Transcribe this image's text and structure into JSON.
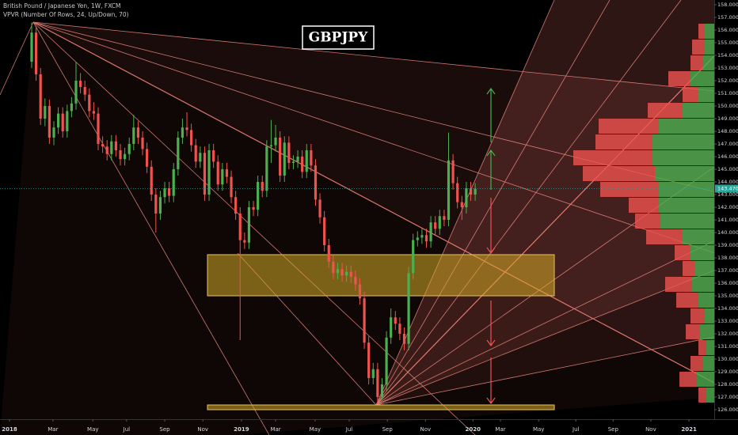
{
  "chart_data": {
    "type": "candlestick",
    "title": "GBPJPY",
    "symbol_info": "British Pound / Japanese Yen, 1W, FXCM",
    "indicator": "VPVR (Number Of Rows, 24, Up/Down, 70)",
    "up_color": "#4caf50",
    "down_color": "#ef5350",
    "xlim": [
      -2.14,
      158.9
    ],
    "ylim": [
      125.25,
      158.375
    ],
    "xticks": [
      {
        "value": 0,
        "label": "2018"
      },
      {
        "value": 9.8,
        "label": "Mar"
      },
      {
        "value": 18.8,
        "label": "May"
      },
      {
        "value": 26.4,
        "label": "Jul"
      },
      {
        "value": 35,
        "label": "Sep"
      },
      {
        "value": 43.6,
        "label": "Nov"
      },
      {
        "value": 52.3,
        "label": "2019"
      },
      {
        "value": 60,
        "label": "Mar"
      },
      {
        "value": 68.9,
        "label": "May"
      },
      {
        "value": 76.6,
        "label": "Jul"
      },
      {
        "value": 85.2,
        "label": "Sep"
      },
      {
        "value": 93.8,
        "label": "Nov"
      },
      {
        "value": 104.5,
        "label": "2020"
      },
      {
        "value": 110.7,
        "label": "Mar"
      },
      {
        "value": 119.3,
        "label": "May"
      },
      {
        "value": 127.7,
        "label": "Jul"
      },
      {
        "value": 136.1,
        "label": "Sep"
      },
      {
        "value": 144.6,
        "label": "Nov"
      },
      {
        "value": 153.2,
        "label": "2021"
      }
    ],
    "yticks": [
      {
        "value": 126,
        "label": "126.000"
      },
      {
        "value": 127,
        "label": "127.000"
      },
      {
        "value": 128,
        "label": "128.000"
      },
      {
        "value": 129,
        "label": "129.000"
      },
      {
        "value": 130,
        "label": "130.000"
      },
      {
        "value": 131,
        "label": "131.000"
      },
      {
        "value": 132,
        "label": "132.000"
      },
      {
        "value": 133,
        "label": "133.000"
      },
      {
        "value": 134,
        "label": "134.000"
      },
      {
        "value": 135,
        "label": "135.000"
      },
      {
        "value": 136,
        "label": "136.000"
      },
      {
        "value": 137,
        "label": "137.000"
      },
      {
        "value": 138,
        "label": "138.000"
      },
      {
        "value": 139,
        "label": "139.000"
      },
      {
        "value": 140,
        "label": "140.000"
      },
      {
        "value": 141,
        "label": "141.000"
      },
      {
        "value": 142,
        "label": "142.000"
      },
      {
        "value": 143,
        "label": "143.000"
      },
      {
        "value": 144,
        "label": "144.000"
      },
      {
        "value": 145,
        "label": "145.000"
      },
      {
        "value": 146,
        "label": "146.000"
      },
      {
        "value": 147,
        "label": "147.000"
      },
      {
        "value": 148,
        "label": "148.000"
      },
      {
        "value": 149,
        "label": "149.000"
      },
      {
        "value": 150,
        "label": "150.000"
      },
      {
        "value": 151,
        "label": "151.000"
      },
      {
        "value": 152,
        "label": "152.000"
      },
      {
        "value": 153,
        "label": "153.000"
      },
      {
        "value": 154,
        "label": "154.000"
      },
      {
        "value": 155,
        "label": "155.000"
      },
      {
        "value": 156,
        "label": "156.000"
      },
      {
        "value": 157,
        "label": "157.000"
      },
      {
        "value": 158,
        "label": "158.000"
      }
    ],
    "last_price": {
      "value": 143.47,
      "label": "143.470"
    },
    "x": [
      5,
      6,
      7,
      8,
      9,
      10,
      11,
      12,
      13,
      14,
      15,
      16,
      17,
      18,
      19,
      20,
      21,
      22,
      23,
      24,
      25,
      26,
      27,
      28,
      29,
      30,
      31,
      32,
      33,
      34,
      35,
      36,
      37,
      38,
      39,
      40,
      41,
      42,
      43,
      44,
      45,
      46,
      47,
      48,
      49,
      50,
      51,
      52,
      53,
      54,
      55,
      56,
      57,
      58,
      59,
      60,
      61,
      62,
      63,
      64,
      65,
      66,
      67,
      68,
      69,
      70,
      71,
      72,
      73,
      74,
      75,
      76,
      77,
      78,
      79,
      80,
      81,
      82,
      83,
      84,
      85,
      86,
      87,
      88,
      89,
      90,
      91,
      92,
      93,
      94,
      95,
      96,
      97,
      98,
      99,
      100,
      101,
      102,
      103,
      104,
      105
    ],
    "open": [
      153.5,
      155.8,
      152.5,
      149.0,
      150.0,
      147.5,
      148.3,
      149.4,
      148.0,
      149.6,
      150.2,
      152.0,
      151.5,
      150.9,
      149.6,
      149.4,
      147.0,
      146.8,
      146.2,
      147.2,
      146.5,
      145.8,
      146.2,
      147.0,
      148.3,
      147.5,
      146.6,
      145.2,
      143.0,
      141.5,
      142.8,
      143.5,
      142.9,
      145.0,
      147.5,
      148.3,
      148.1,
      146.9,
      145.6,
      146.3,
      143.0,
      146.5,
      145.6,
      143.8,
      145.0,
      144.4,
      142.8,
      141.5,
      139.4,
      139.2,
      142.0,
      141.8,
      144.0,
      143.3,
      146.8,
      146.9,
      147.5,
      144.5,
      147.1,
      145.5,
      145.6,
      146.0,
      144.8,
      146.5,
      145.3,
      142.6,
      141.2,
      139.0,
      137.7,
      136.8,
      137.1,
      136.6,
      136.9,
      136.5,
      135.9,
      134.8,
      131.3,
      128.5,
      129.2,
      127.0,
      128.0,
      131.7,
      133.3,
      132.8,
      132.0,
      131.2,
      136.8,
      139.4,
      139.6,
      139.8,
      139.3,
      140.8,
      140.3,
      141.3,
      141.0,
      145.7,
      143.9,
      142.4,
      142.0,
      143.5,
      143.0
    ],
    "high": [
      156.6,
      156.3,
      153.0,
      150.6,
      150.5,
      148.8,
      149.9,
      149.9,
      150.1,
      150.7,
      153.5,
      152.6,
      152.0,
      151.4,
      150.3,
      149.9,
      147.6,
      147.3,
      147.7,
      147.7,
      147.0,
      146.7,
      147.5,
      149.3,
      148.8,
      148.0,
      147.1,
      145.7,
      143.5,
      143.3,
      144.0,
      144.0,
      145.5,
      148.0,
      149.0,
      149.5,
      148.6,
      147.4,
      146.8,
      146.8,
      147.0,
      147.0,
      146.1,
      145.5,
      145.5,
      144.9,
      143.3,
      142.0,
      140.0,
      142.5,
      142.5,
      144.5,
      144.5,
      147.3,
      148.9,
      148.5,
      148.0,
      147.6,
      147.6,
      146.1,
      146.5,
      146.5,
      147.0,
      147.0,
      145.8,
      143.1,
      141.7,
      139.5,
      138.2,
      137.6,
      137.6,
      137.4,
      137.4,
      137.0,
      136.4,
      135.3,
      131.8,
      129.7,
      129.7,
      128.5,
      132.2,
      134.0,
      133.8,
      133.3,
      132.5,
      137.3,
      139.9,
      140.1,
      140.3,
      140.3,
      141.3,
      141.3,
      141.8,
      141.8,
      147.9,
      146.2,
      144.4,
      142.9,
      144.0,
      144.0,
      143.9
    ],
    "low": [
      153.0,
      152.0,
      148.5,
      148.4,
      147.0,
      146.9,
      147.8,
      147.5,
      147.5,
      149.1,
      149.7,
      151.0,
      150.4,
      149.1,
      148.9,
      146.5,
      146.3,
      145.7,
      145.7,
      146.0,
      145.3,
      145.3,
      145.7,
      146.5,
      147.0,
      146.1,
      144.7,
      142.5,
      140.0,
      141.0,
      142.3,
      142.4,
      142.4,
      144.5,
      147.0,
      147.6,
      146.4,
      145.1,
      145.1,
      142.5,
      142.5,
      145.1,
      143.3,
      143.3,
      143.9,
      142.3,
      141.0,
      131.5,
      138.7,
      138.7,
      141.3,
      141.3,
      142.8,
      142.8,
      145.5,
      146.4,
      144.0,
      144.0,
      145.0,
      145.0,
      145.1,
      144.3,
      144.3,
      144.8,
      142.1,
      140.7,
      138.5,
      137.2,
      136.3,
      136.3,
      136.1,
      136.1,
      136.0,
      135.4,
      134.3,
      130.8,
      128.0,
      128.0,
      126.5,
      126.8,
      127.5,
      131.2,
      132.3,
      131.5,
      130.7,
      130.7,
      136.3,
      138.9,
      139.1,
      138.8,
      138.8,
      139.8,
      139.8,
      140.5,
      140.5,
      143.4,
      141.9,
      141.0,
      141.5,
      142.5,
      142.5
    ],
    "close": [
      155.8,
      152.5,
      149.0,
      150.0,
      147.5,
      148.3,
      149.4,
      148.0,
      149.6,
      150.2,
      152.0,
      151.5,
      150.9,
      149.6,
      149.4,
      147.0,
      146.8,
      146.2,
      147.2,
      146.5,
      145.8,
      146.2,
      147.0,
      148.3,
      147.5,
      146.6,
      145.2,
      143.0,
      141.5,
      142.8,
      143.5,
      142.9,
      145.0,
      147.5,
      148.3,
      148.1,
      146.9,
      145.6,
      146.3,
      143.0,
      146.5,
      145.6,
      143.8,
      145.0,
      144.4,
      142.8,
      141.5,
      139.4,
      139.2,
      142.0,
      141.8,
      144.0,
      143.3,
      146.8,
      146.9,
      147.5,
      144.5,
      147.1,
      145.5,
      145.6,
      146.0,
      144.8,
      146.5,
      145.3,
      142.6,
      141.2,
      139.0,
      137.7,
      136.8,
      137.1,
      136.6,
      136.9,
      136.5,
      135.9,
      134.8,
      131.3,
      128.5,
      129.2,
      127.0,
      128.0,
      131.7,
      133.3,
      132.8,
      132.0,
      131.2,
      136.8,
      139.4,
      139.6,
      139.8,
      139.3,
      140.8,
      140.3,
      141.3,
      141.0,
      145.7,
      143.9,
      142.4,
      142.0,
      143.5,
      143.0,
      143.47
    ],
    "volume_profile": {
      "row_bottoms": [
        126.5,
        127.75,
        129,
        130.25,
        131.5,
        132.75,
        134,
        135.25,
        136.5,
        137.75,
        139,
        140.25,
        141.5,
        142.75,
        144,
        145.25,
        146.5,
        147.75,
        149,
        150.25,
        151.5,
        152.75,
        154,
        155.25
      ],
      "up": [
        10,
        22,
        14,
        10,
        18,
        12,
        20,
        28,
        24,
        30,
        40,
        68,
        70,
        70,
        75,
        78,
        78,
        70,
        40,
        20,
        30,
        14,
        12,
        12
      ],
      "down": [
        10,
        22,
        16,
        10,
        18,
        18,
        28,
        34,
        16,
        20,
        46,
        32,
        38,
        74,
        91,
        100,
        72,
        76,
        44,
        20,
        28,
        16,
        16,
        8
      ]
    }
  }
}
